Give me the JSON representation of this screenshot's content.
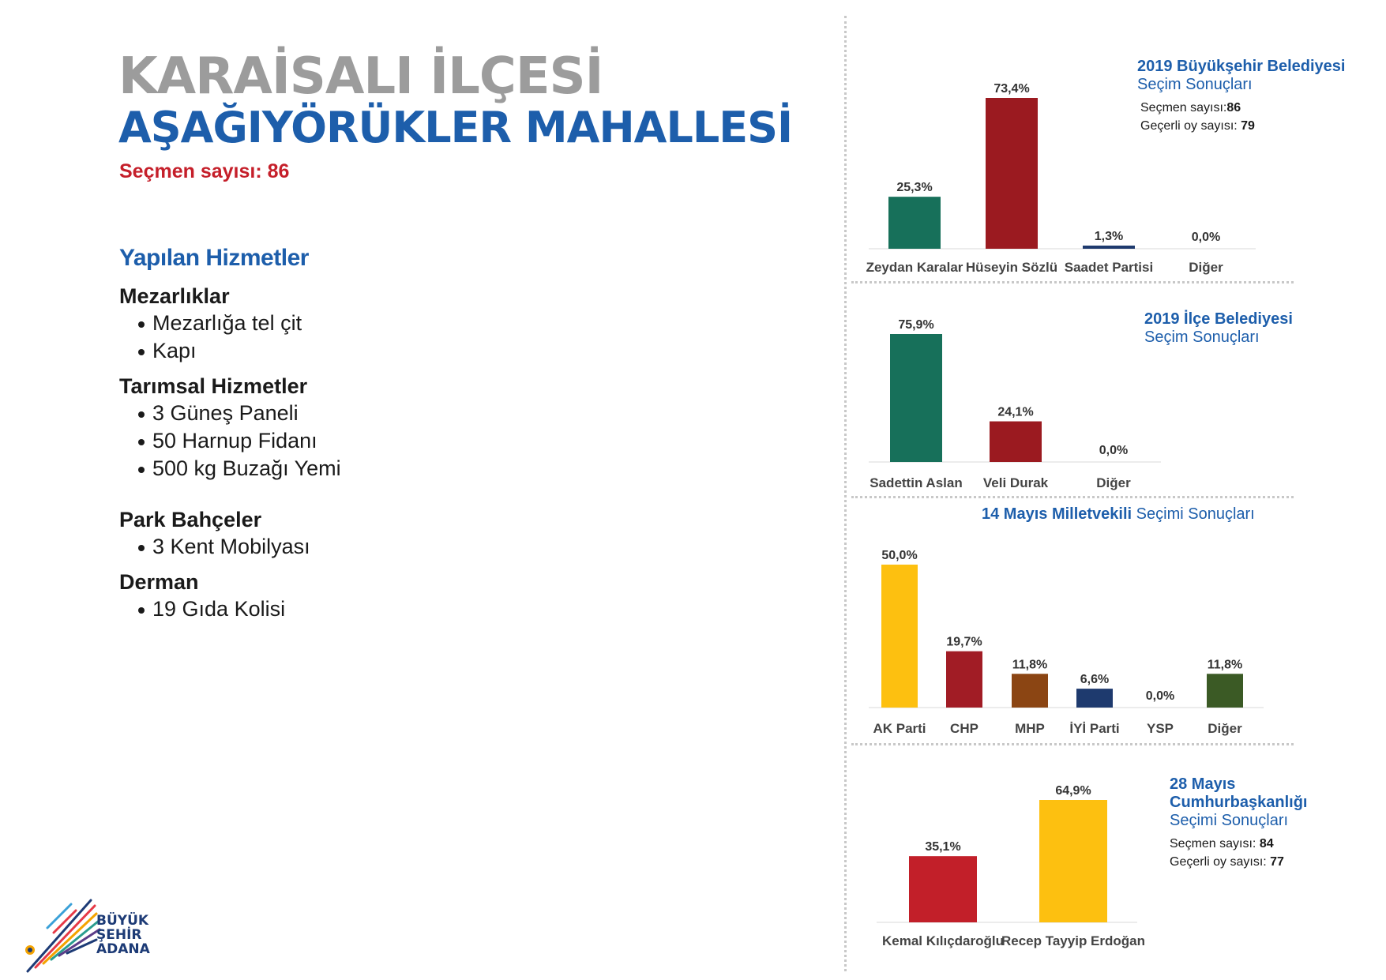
{
  "header": {
    "title_line1": "KARAİSALI İLÇESİ",
    "title_line2": "AŞAĞIYÖRÜKLER MAHALLESİ",
    "voters_label": "Seçmen sayısı:",
    "voters_value": "86"
  },
  "services": {
    "title": "Yapılan Hizmetler",
    "categories": [
      {
        "name": "Mezarlıklar",
        "items": [
          "Mezarlığa tel çit",
          "Kapı"
        ]
      },
      {
        "name": "Tarımsal Hizmetler",
        "items": [
          "3 Güneş Paneli",
          "50 Harnup Fidanı",
          "500 kg Buzağı Yemi"
        ]
      },
      {
        "name": "Park Bahçeler",
        "items": [
          "3 Kent Mobilyası"
        ]
      },
      {
        "name": "Derman",
        "items": [
          "19 Gıda Kolisi"
        ]
      }
    ]
  },
  "logo": {
    "line1": "BÜYÜK",
    "line2": "ŞEHİR",
    "line3": "ADANA"
  },
  "chart_headers": {
    "c1": {
      "bold": "2019 Büyükşehir Belediyesi",
      "normal": "Seçim Sonuçları",
      "m1_label": "Seçmen sayısı:",
      "m1_value": "86",
      "m2_label": "Geçerli oy sayısı:",
      "m2_value": "79"
    },
    "c2": {
      "bold": "2019 İlçe Belediyesi",
      "normal": "Seçim Sonuçları"
    },
    "c3": {
      "bold": "14 Mayıs Milletvekili",
      "normal": " Seçimi Sonuçları"
    },
    "c4": {
      "bold1": "28 Mayıs",
      "bold2": "Cumhurbaşkanlığı",
      "normal": "Seçimi Sonuçları",
      "m1_label": "Seçmen sayısı:",
      "m1_value": "84",
      "m2_label": "Geçerli oy sayısı:",
      "m2_value": "77"
    }
  },
  "chart_data": [
    {
      "type": "bar",
      "title": "2019 Büyükşehir Belediyesi Seçim Sonuçları",
      "categories": [
        "Zeydan Karalar",
        "Hüseyin Sözlü",
        "Saadet Partisi",
        "Diğer"
      ],
      "values": [
        25.3,
        73.4,
        1.3,
        0.0
      ],
      "labels": [
        "25,3%",
        "73,4%",
        "1,3%",
        "0,0%"
      ],
      "colors": [
        "#17705a",
        "#9b1a20",
        "#1e3a6e",
        "#999999"
      ],
      "ylim": [
        0,
        73.4
      ]
    },
    {
      "type": "bar",
      "title": "2019 İlçe Belediyesi Seçim Sonuçları",
      "categories": [
        "Sadettin Aslan",
        "Veli Durak",
        "Diğer"
      ],
      "values": [
        75.9,
        24.1,
        0.0
      ],
      "labels": [
        "75,9%",
        "24,1%",
        "0,0%"
      ],
      "colors": [
        "#17705a",
        "#9b1a20",
        "#999999"
      ],
      "ylim": [
        0,
        75.9
      ]
    },
    {
      "type": "bar",
      "title": "14 Mayıs Milletvekili Seçimi Sonuçları",
      "categories": [
        "AK Parti",
        "CHP",
        "MHP",
        "İYİ Parti",
        "YSP",
        "Diğer"
      ],
      "values": [
        50.0,
        19.7,
        11.8,
        6.6,
        0.0,
        11.8
      ],
      "labels": [
        "50,0%",
        "19,7%",
        "11,8%",
        "6,6%",
        "0,0%",
        "11,8%"
      ],
      "colors": [
        "#fdc010",
        "#a11c25",
        "#8b4513",
        "#1e3a6e",
        "#999999",
        "#3b5a25"
      ],
      "ylim": [
        0,
        50.0
      ]
    },
    {
      "type": "bar",
      "title": "28 Mayıs Cumhurbaşkanlığı Seçimi Sonuçları",
      "categories": [
        "Kemal Kılıçdaroğlu",
        "Recep Tayyip Erdoğan"
      ],
      "values": [
        35.1,
        64.9
      ],
      "labels": [
        "35,1%",
        "64,9%"
      ],
      "colors": [
        "#c21f29",
        "#fdc010"
      ],
      "ylim": [
        0,
        64.9
      ]
    }
  ]
}
